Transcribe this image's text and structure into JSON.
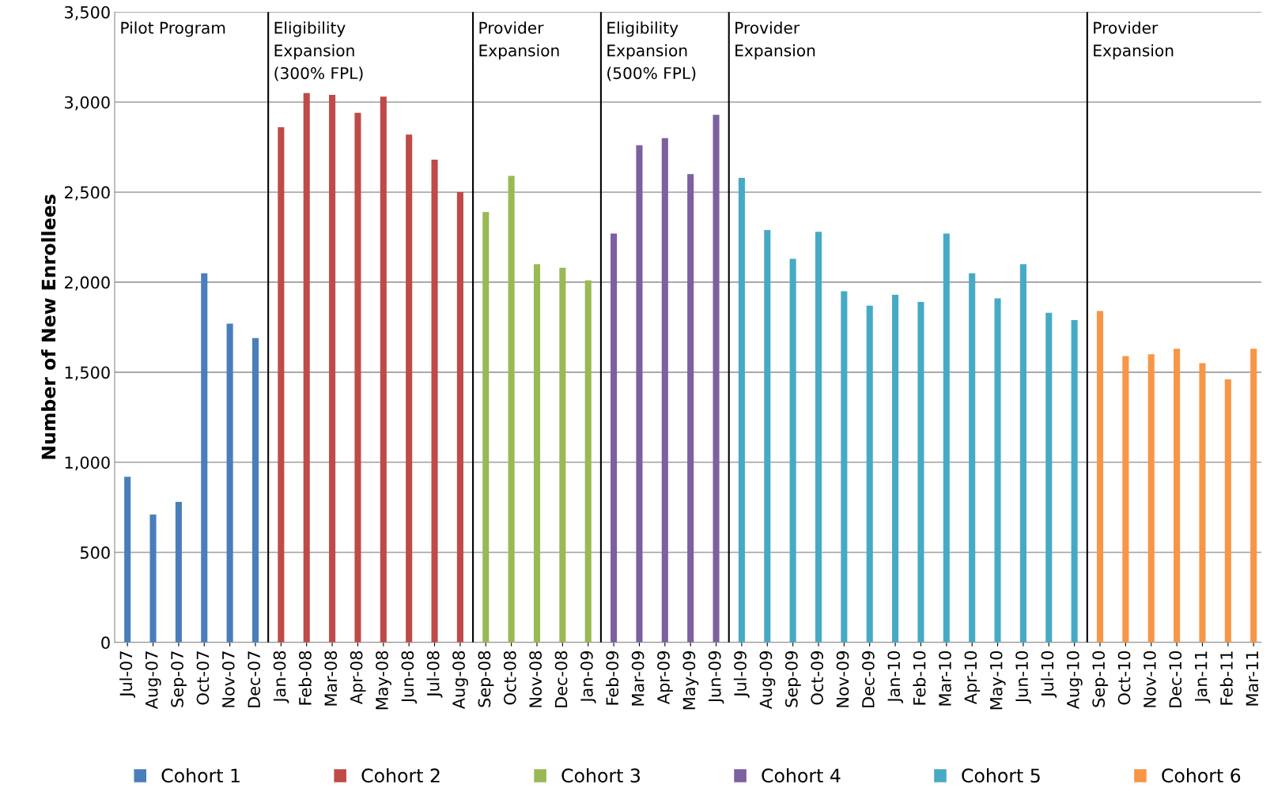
{
  "chart_data": {
    "type": "bar",
    "ylabel": "Number of New Enrollees",
    "categories": [
      "Jul-07",
      "Aug-07",
      "Sep-07",
      "Oct-07",
      "Nov-07",
      "Dec-07",
      "Jan-08",
      "Feb-08",
      "Mar-08",
      "Apr-08",
      "May-08",
      "Jun-08",
      "Jul-08",
      "Aug-08",
      "Sep-08",
      "Oct-08",
      "Nov-08",
      "Dec-08",
      "Jan-09",
      "Feb-09",
      "Mar-09",
      "Apr-09",
      "May-09",
      "Jun-09",
      "Jul-09",
      "Aug-09",
      "Sep-09",
      "Oct-09",
      "Nov-09",
      "Dec-09",
      "Jan-10",
      "Feb-10",
      "Mar-10",
      "Apr-10",
      "May-10",
      "Jun-10",
      "Jul-10",
      "Aug-10",
      "Sep-10",
      "Oct-10",
      "Nov-10",
      "Dec-10",
      "Jan-11",
      "Feb-11",
      "Mar-11"
    ],
    "series": [
      {
        "name": "Cohort 1",
        "color": "#4a7ebb",
        "values": [
          920,
          710,
          780,
          2050,
          1770,
          1690,
          null,
          null,
          null,
          null,
          null,
          null,
          null,
          null,
          null,
          null,
          null,
          null,
          null,
          null,
          null,
          null,
          null,
          null,
          null,
          null,
          null,
          null,
          null,
          null,
          null,
          null,
          null,
          null,
          null,
          null,
          null,
          null,
          null,
          null,
          null,
          null,
          null,
          null,
          null
        ]
      },
      {
        "name": "Cohort 2",
        "color": "#be4b48",
        "values": [
          null,
          null,
          null,
          null,
          null,
          null,
          2860,
          3050,
          3040,
          2940,
          3030,
          2820,
          2680,
          2500,
          null,
          null,
          null,
          null,
          null,
          null,
          null,
          null,
          null,
          null,
          null,
          null,
          null,
          null,
          null,
          null,
          null,
          null,
          null,
          null,
          null,
          null,
          null,
          null,
          null,
          null,
          null,
          null,
          null,
          null,
          null
        ]
      },
      {
        "name": "Cohort 3",
        "color": "#98b954",
        "values": [
          null,
          null,
          null,
          null,
          null,
          null,
          null,
          null,
          null,
          null,
          null,
          null,
          null,
          null,
          2390,
          2590,
          2100,
          2080,
          2010,
          null,
          null,
          null,
          null,
          null,
          null,
          null,
          null,
          null,
          null,
          null,
          null,
          null,
          null,
          null,
          null,
          null,
          null,
          null,
          null,
          null,
          null,
          null,
          null,
          null,
          null
        ]
      },
      {
        "name": "Cohort 4",
        "color": "#7d60a0",
        "values": [
          null,
          null,
          null,
          null,
          null,
          null,
          null,
          null,
          null,
          null,
          null,
          null,
          null,
          null,
          null,
          null,
          null,
          null,
          null,
          2270,
          2760,
          2800,
          2600,
          2930,
          null,
          null,
          null,
          null,
          null,
          null,
          null,
          null,
          null,
          null,
          null,
          null,
          null,
          null,
          null,
          null,
          null,
          null,
          null,
          null,
          null
        ]
      },
      {
        "name": "Cohort 5",
        "color": "#46aac5",
        "values": [
          null,
          null,
          null,
          null,
          null,
          null,
          null,
          null,
          null,
          null,
          null,
          null,
          null,
          null,
          null,
          null,
          null,
          null,
          null,
          null,
          null,
          null,
          null,
          null,
          2580,
          2290,
          2130,
          2280,
          1950,
          1870,
          1930,
          1890,
          2270,
          2050,
          1910,
          2100,
          1830,
          1790,
          null,
          null,
          null,
          null,
          null,
          null,
          null
        ]
      },
      {
        "name": "Cohort 6",
        "color": "#f79646",
        "values": [
          null,
          null,
          null,
          null,
          null,
          null,
          null,
          null,
          null,
          null,
          null,
          null,
          null,
          null,
          null,
          null,
          null,
          null,
          null,
          null,
          null,
          null,
          null,
          null,
          null,
          null,
          null,
          null,
          null,
          null,
          null,
          null,
          null,
          null,
          null,
          null,
          null,
          null,
          1840,
          1590,
          1600,
          1630,
          1550,
          1460,
          1630
        ]
      }
    ],
    "annotations": [
      "Pilot Program",
      "Eligibility\nExpansion\n(300% FPL)",
      "Provider\nExpansion",
      "Eligibility\nExpansion\n(500% FPL)",
      "Provider\nExpansion",
      "Provider\nExpansion"
    ],
    "ylim": [
      0,
      3500
    ],
    "yticks": [
      {
        "value": 0,
        "label": "0"
      },
      {
        "value": 500,
        "label": "500"
      },
      {
        "value": 1000,
        "label": "1,000"
      },
      {
        "value": 1500,
        "label": "1,500"
      },
      {
        "value": 2000,
        "label": "2,000"
      },
      {
        "value": 2500,
        "label": "2,500"
      },
      {
        "value": 3000,
        "label": "3,000"
      },
      {
        "value": 3500,
        "label": "3,500"
      }
    ],
    "grid": "y",
    "legend": "bottom"
  }
}
